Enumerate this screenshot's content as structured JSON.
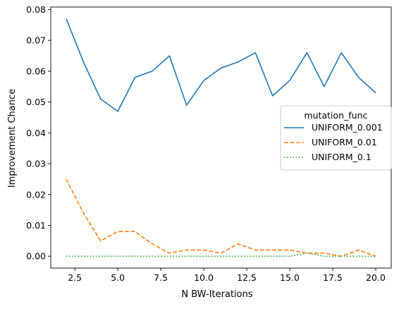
{
  "chart_data": {
    "type": "line",
    "title": "",
    "xlabel": "N BW-Iterations",
    "ylabel": "Improvement Chance",
    "xlim": [
      1.1,
      20.9
    ],
    "ylim": [
      -0.00385,
      0.0808
    ],
    "x_ticks": [
      2.5,
      5.0,
      7.5,
      10.0,
      12.5,
      15.0,
      17.5,
      20.0
    ],
    "x_tick_labels": [
      "2.5",
      "5.0",
      "7.5",
      "10.0",
      "12.5",
      "15.0",
      "17.5",
      "20.0"
    ],
    "y_ticks": [
      0.0,
      0.01,
      0.02,
      0.03,
      0.04,
      0.05,
      0.06,
      0.07,
      0.08
    ],
    "y_tick_labels": [
      "0.00",
      "0.01",
      "0.02",
      "0.03",
      "0.04",
      "0.05",
      "0.06",
      "0.07",
      "0.08"
    ],
    "grid": false,
    "legend": {
      "title": "mutation_func",
      "placement": "center-right"
    },
    "x": [
      2,
      3,
      4,
      5,
      6,
      7,
      8,
      9,
      10,
      11,
      12,
      13,
      14,
      15,
      16,
      17,
      18,
      19,
      20
    ],
    "series": [
      {
        "name": "UNIFORM_0.001",
        "color": "#1f77b4",
        "dash": "solid",
        "values": [
          0.077,
          0.063,
          0.051,
          0.047,
          0.058,
          0.06,
          0.065,
          0.049,
          0.057,
          0.061,
          0.063,
          0.066,
          0.052,
          0.057,
          0.066,
          0.055,
          0.066,
          0.058,
          0.053
        ]
      },
      {
        "name": "UNIFORM_0.01",
        "color": "#ff7f0e",
        "dash": "dashed",
        "values": [
          0.025,
          0.014,
          0.005,
          0.008,
          0.008,
          0.004,
          0.001,
          0.002,
          0.002,
          0.001,
          0.004,
          0.002,
          0.002,
          0.002,
          0.001,
          0.001,
          0.0,
          0.002,
          0.0
        ]
      },
      {
        "name": "UNIFORM_0.1",
        "color": "#2ca02c",
        "dash": "dotted",
        "values": [
          0.0,
          0.0,
          0.0,
          0.0,
          0.0,
          0.0,
          0.0,
          0.0,
          0.0,
          0.0,
          0.0,
          0.0,
          0.0,
          0.0,
          0.001,
          0.0,
          0.0,
          0.0,
          0.0
        ]
      }
    ]
  }
}
